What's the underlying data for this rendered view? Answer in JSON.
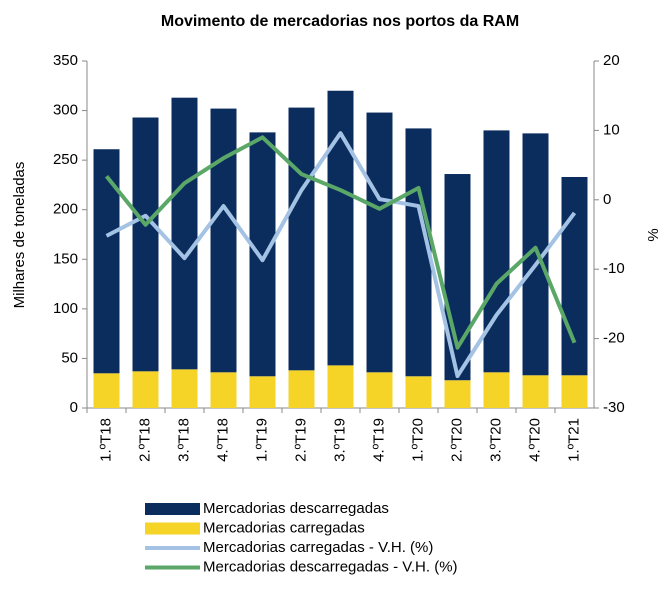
{
  "chart_data": {
    "type": "bar",
    "title": "Movimento de mercadorias nos portos da RAM",
    "ylabel": "Milhares de toneladas",
    "y2label": "%",
    "categories": [
      "1.ºT18",
      "2.ºT18",
      "3.ºT18",
      "4.ºT18",
      "1.ºT19",
      "2.ºT19",
      "3.ºT19",
      "4.ºT19",
      "1.ºT20",
      "2.ºT20",
      "3.ºT20",
      "4.ºT20",
      "1.ºT21"
    ],
    "series": [
      {
        "name": "Mercadorias descarregadas",
        "color": "#0b2d5e",
        "values": [
          226,
          256,
          274,
          266,
          246,
          265,
          277,
          262,
          250,
          208,
          244,
          244,
          200
        ]
      },
      {
        "name": "Mercadorias carregadas",
        "color": "#f5d327",
        "values": [
          35,
          37,
          39,
          36,
          32,
          38,
          43,
          36,
          32,
          28,
          36,
          33,
          33
        ]
      },
      {
        "name": "Mercadorias carregadas - V.H. (%)",
        "color": "#a4c2e4",
        "axis": "y2",
        "values": [
          -5.2,
          -2.3,
          -8.4,
          -0.9,
          -8.7,
          1.4,
          9.6,
          0.1,
          -0.9,
          -25.4,
          -16.6,
          -9.4,
          -1.9
        ]
      },
      {
        "name": "Mercadorias descarregadas - V.H. (%)",
        "color": "#5aa768",
        "axis": "y2",
        "values": [
          3.4,
          -3.6,
          2.4,
          6.0,
          9.0,
          3.7,
          1.4,
          -1.3,
          1.7,
          -21.3,
          -12.1,
          -6.9,
          -20.6
        ]
      }
    ],
    "ylim": [
      0,
      350
    ],
    "yticks": [
      0,
      50,
      100,
      150,
      200,
      250,
      300,
      350
    ],
    "y2lim": [
      -30,
      20
    ],
    "y2ticks": [
      -30,
      -20,
      -10,
      0,
      10,
      20
    ],
    "stacked": true,
    "legend": "bottom"
  }
}
